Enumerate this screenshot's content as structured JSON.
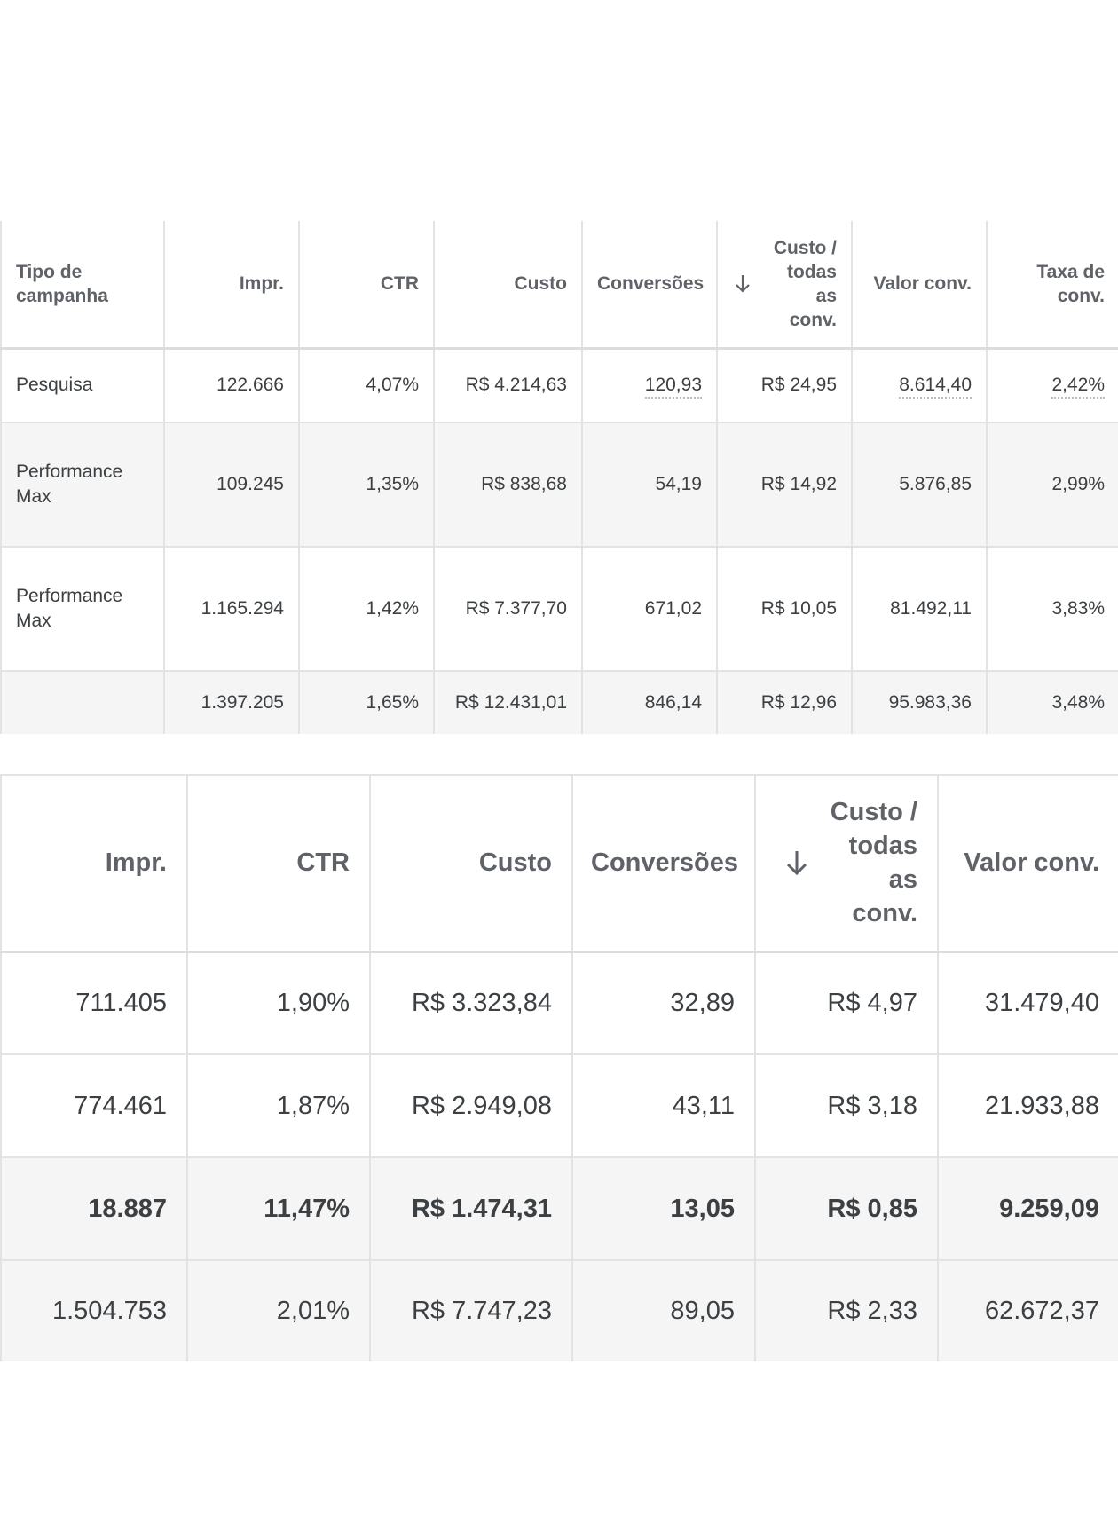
{
  "table1": {
    "headers": [
      "Tipo de campanha",
      "Impr.",
      "CTR",
      "Custo",
      "Conversões",
      "Custo / todas as conv.",
      "Valor conv.",
      "Taxa de conv."
    ],
    "rows": [
      {
        "tipo": "Pesquisa",
        "impr": "122.666",
        "ctr": "4,07%",
        "custo": "R$ 4.214,63",
        "conversoes": "120,93",
        "custo_conv": "R$ 24,95",
        "valor_conv": "8.614,40",
        "taxa_conv": "2,42%"
      },
      {
        "tipo": "Performance Max",
        "impr": "109.245",
        "ctr": "1,35%",
        "custo": "R$ 838,68",
        "conversoes": "54,19",
        "custo_conv": "R$ 14,92",
        "valor_conv": "5.876,85",
        "taxa_conv": "2,99%"
      },
      {
        "tipo": "Performance Max",
        "impr": "1.165.294",
        "ctr": "1,42%",
        "custo": "R$ 7.377,70",
        "conversoes": "671,02",
        "custo_conv": "R$ 10,05",
        "valor_conv": "81.492,11",
        "taxa_conv": "3,83%"
      }
    ],
    "total": {
      "tipo": "",
      "impr": "1.397.205",
      "ctr": "1,65%",
      "custo": "R$ 12.431,01",
      "conversoes": "846,14",
      "custo_conv": "R$ 12,96",
      "valor_conv": "95.983,36",
      "taxa_conv": "3,48%"
    }
  },
  "table2": {
    "headers": [
      "Impr.",
      "CTR",
      "Custo",
      "Conversões",
      "Custo / todas as conv.",
      "Valor conv."
    ],
    "rows": [
      {
        "impr": "711.405",
        "ctr": "1,90%",
        "custo": "R$ 3.323,84",
        "conversoes": "32,89",
        "custo_conv": "R$ 4,97",
        "valor_conv": "31.479,40"
      },
      {
        "impr": "774.461",
        "ctr": "1,87%",
        "custo": "R$ 2.949,08",
        "conversoes": "43,11",
        "custo_conv": "R$ 3,18",
        "valor_conv": "21.933,88"
      },
      {
        "impr": "18.887",
        "ctr": "11,47%",
        "custo": "R$ 1.474,31",
        "conversoes": "13,05",
        "custo_conv": "R$ 0,85",
        "valor_conv": "9.259,09"
      }
    ],
    "total": {
      "impr": "1.504.753",
      "ctr": "2,01%",
      "custo": "R$ 7.747,23",
      "conversoes": "89,05",
      "custo_conv": "R$ 2,33",
      "valor_conv": "62.672,37"
    }
  },
  "icons": {
    "sort": "arrow-down-icon"
  }
}
